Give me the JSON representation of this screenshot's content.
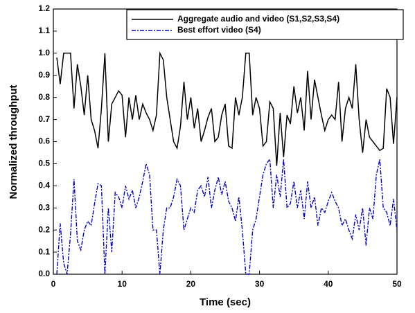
{
  "chart_data": {
    "type": "line",
    "xlabel": "Time (sec)",
    "ylabel": "Normalized throughput",
    "x": [
      0.5,
      1,
      1.5,
      2,
      2.5,
      3,
      3.5,
      4,
      4.5,
      5,
      5.5,
      6,
      6.5,
      7,
      7.5,
      8,
      8.5,
      9,
      9.5,
      10,
      10.5,
      11,
      11.5,
      12,
      12.5,
      13,
      13.5,
      14,
      14.5,
      15,
      15.5,
      16,
      16.5,
      17,
      17.5,
      18,
      18.5,
      19,
      19.5,
      20,
      20.5,
      21,
      21.5,
      22,
      22.5,
      23,
      23.5,
      24,
      24.5,
      25,
      25.5,
      26,
      26.5,
      27,
      27.5,
      28,
      28.5,
      29,
      29.5,
      30,
      30.5,
      31,
      31.5,
      32,
      32.5,
      33,
      33.5,
      34,
      34.5,
      35,
      35.5,
      36,
      36.5,
      37,
      37.5,
      38,
      38.5,
      39,
      39.5,
      40,
      40.5,
      41,
      41.5,
      42,
      42.5,
      43,
      43.5,
      44,
      44.5,
      45,
      45.5,
      46,
      46.5,
      47,
      47.5,
      48,
      48.5,
      49,
      49.5,
      50
    ],
    "series": [
      {
        "name": "Aggregate audio and video (S1,S2,S3,S4)",
        "color": "#000000",
        "dash": "solid",
        "values": [
          0.98,
          0.86,
          1.0,
          1.0,
          1.0,
          0.75,
          0.95,
          0.85,
          0.72,
          0.9,
          0.7,
          0.65,
          0.57,
          0.75,
          1.0,
          0.6,
          0.77,
          0.8,
          0.83,
          0.81,
          0.62,
          0.8,
          0.7,
          0.81,
          0.7,
          0.77,
          0.73,
          0.7,
          0.65,
          0.72,
          1.0,
          0.97,
          0.8,
          0.7,
          0.6,
          0.57,
          0.67,
          0.87,
          0.7,
          0.8,
          0.66,
          0.75,
          0.6,
          0.65,
          0.71,
          0.75,
          0.6,
          0.62,
          0.72,
          0.77,
          0.58,
          0.57,
          0.8,
          0.72,
          0.8,
          1.0,
          1.0,
          0.72,
          0.8,
          0.75,
          0.58,
          0.6,
          0.78,
          0.75,
          0.49,
          0.73,
          0.53,
          0.72,
          0.68,
          0.85,
          0.73,
          0.8,
          0.65,
          0.92,
          0.7,
          0.88,
          0.8,
          0.72,
          0.65,
          0.7,
          0.72,
          0.7,
          0.87,
          0.6,
          0.75,
          0.8,
          0.75,
          0.95,
          0.7,
          0.55,
          0.7,
          0.62,
          0.6,
          0.58,
          0.56,
          0.57,
          0.84,
          0.8,
          0.59,
          0.8
        ]
      },
      {
        "name": "Best effort video (S4)",
        "color": "#0000cc",
        "dash": "dashdot",
        "values": [
          0.0,
          0.23,
          0.05,
          0.0,
          0.18,
          0.43,
          0.15,
          0.11,
          0.2,
          0.24,
          0.22,
          0.32,
          0.41,
          0.4,
          0.0,
          0.3,
          0.1,
          0.37,
          0.35,
          0.3,
          0.4,
          0.34,
          0.38,
          0.3,
          0.35,
          0.42,
          0.5,
          0.45,
          0.2,
          0.2,
          0.0,
          0.2,
          0.3,
          0.3,
          0.35,
          0.43,
          0.4,
          0.2,
          0.25,
          0.3,
          0.28,
          0.38,
          0.4,
          0.35,
          0.44,
          0.3,
          0.38,
          0.44,
          0.36,
          0.42,
          0.33,
          0.3,
          0.24,
          0.35,
          0.2,
          0.0,
          0.0,
          0.2,
          0.25,
          0.35,
          0.45,
          0.5,
          0.52,
          0.3,
          0.45,
          0.35,
          0.52,
          0.3,
          0.32,
          0.42,
          0.3,
          0.38,
          0.25,
          0.42,
          0.3,
          0.35,
          0.22,
          0.3,
          0.28,
          0.33,
          0.37,
          0.33,
          0.3,
          0.22,
          0.25,
          0.2,
          0.16,
          0.27,
          0.2,
          0.3,
          0.13,
          0.3,
          0.25,
          0.45,
          0.52,
          0.3,
          0.28,
          0.22,
          0.34,
          0.2
        ]
      }
    ],
    "xlim": [
      0,
      50
    ],
    "xticks": [
      0,
      10,
      20,
      30,
      40,
      50
    ],
    "ylim": [
      0,
      1.2
    ],
    "yticks": [
      {
        "value": 0,
        "label": "0.0"
      },
      0.1,
      0.2,
      0.3,
      0.4,
      0.5,
      0.6,
      0.7,
      0.8,
      0.9,
      {
        "value": 1,
        "label": "1.0"
      },
      1.1,
      1.2
    ],
    "legend": "upper right",
    "grid": false
  }
}
